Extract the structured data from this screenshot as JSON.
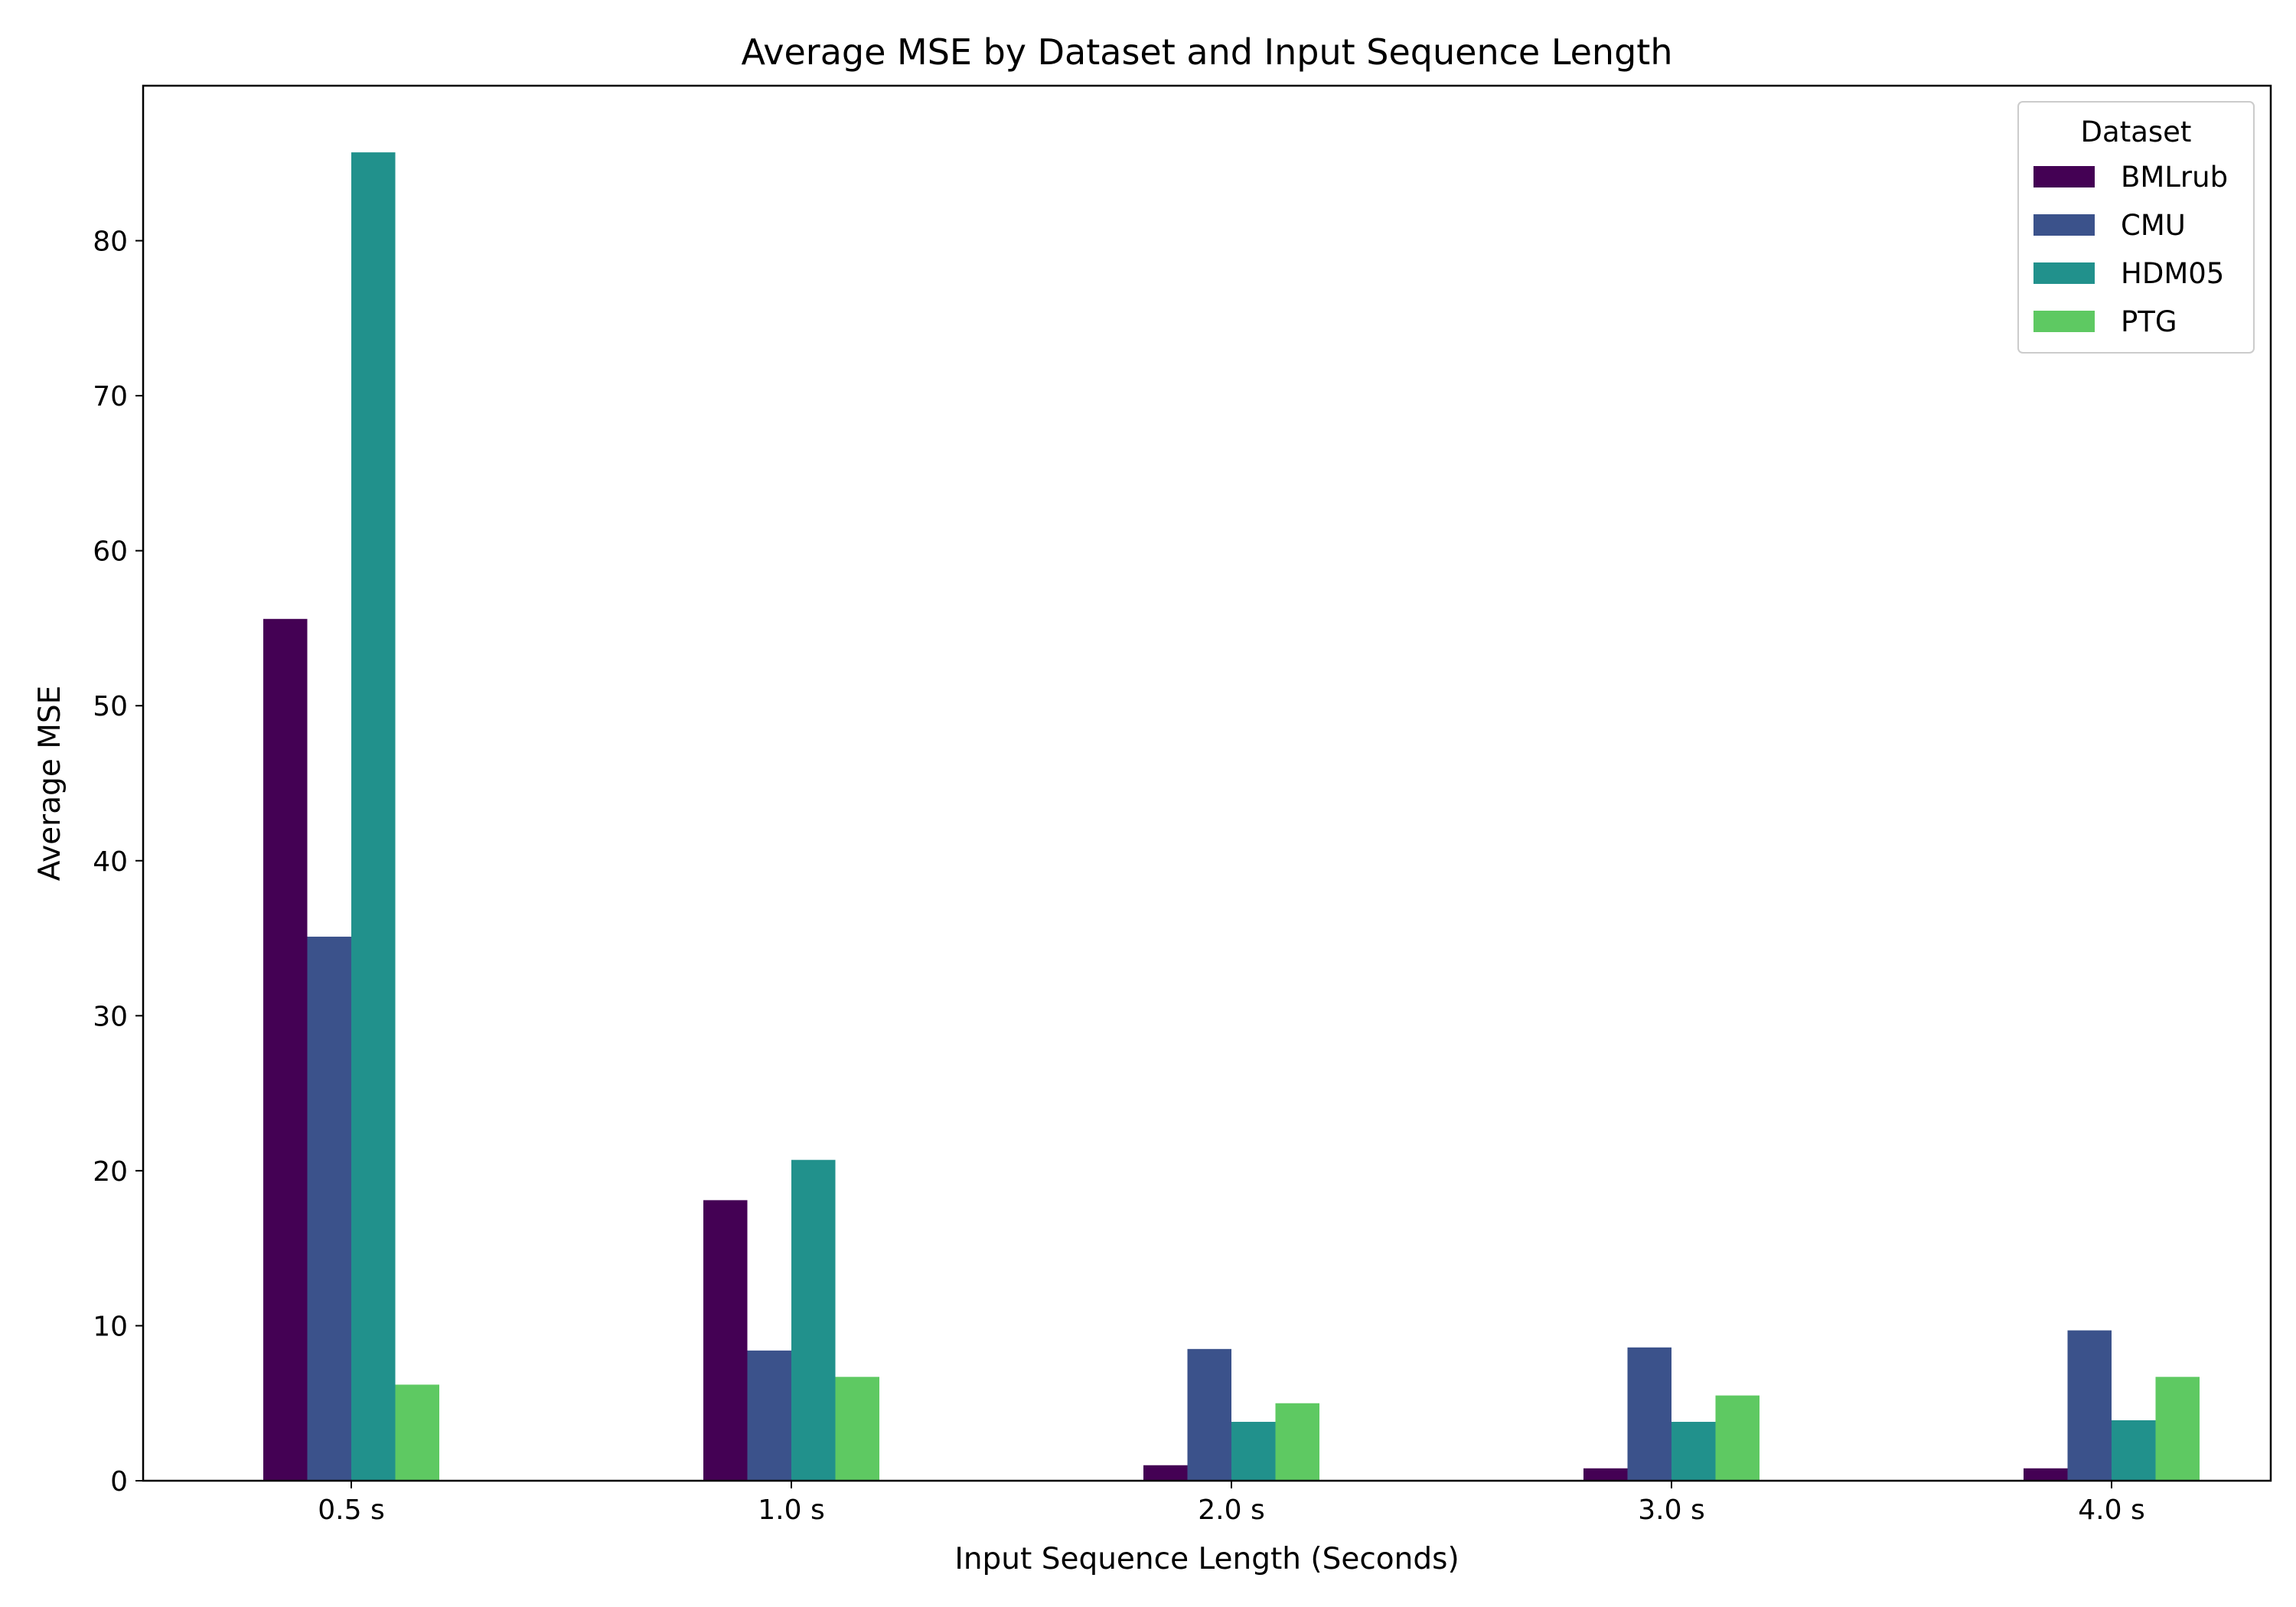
{
  "chart_data": {
    "type": "bar",
    "title": "Average MSE by Dataset and Input Sequence Length",
    "xlabel": "Input Sequence Length (Seconds)",
    "ylabel": "Average MSE",
    "categories": [
      "0.5 s",
      "1.0 s",
      "2.0 s",
      "3.0 s",
      "4.0 s"
    ],
    "series": [
      {
        "name": "BMLrub",
        "color": "#440154",
        "values": [
          55.6,
          18.1,
          1.0,
          0.8,
          0.8
        ]
      },
      {
        "name": "CMU",
        "color": "#3b528b",
        "values": [
          35.1,
          8.4,
          8.5,
          8.6,
          9.7
        ]
      },
      {
        "name": "HDM05",
        "color": "#21918c",
        "values": [
          85.7,
          20.7,
          3.8,
          3.8,
          3.9
        ]
      },
      {
        "name": "PTG",
        "color": "#5ec962",
        "values": [
          6.2,
          6.7,
          5.0,
          5.5,
          6.7
        ]
      }
    ],
    "ylim": [
      0,
      90
    ],
    "yticks": [
      0,
      10,
      20,
      30,
      40,
      50,
      60,
      70,
      80
    ],
    "grid": false,
    "legend": {
      "title": "Dataset",
      "placement": "top-right"
    }
  }
}
